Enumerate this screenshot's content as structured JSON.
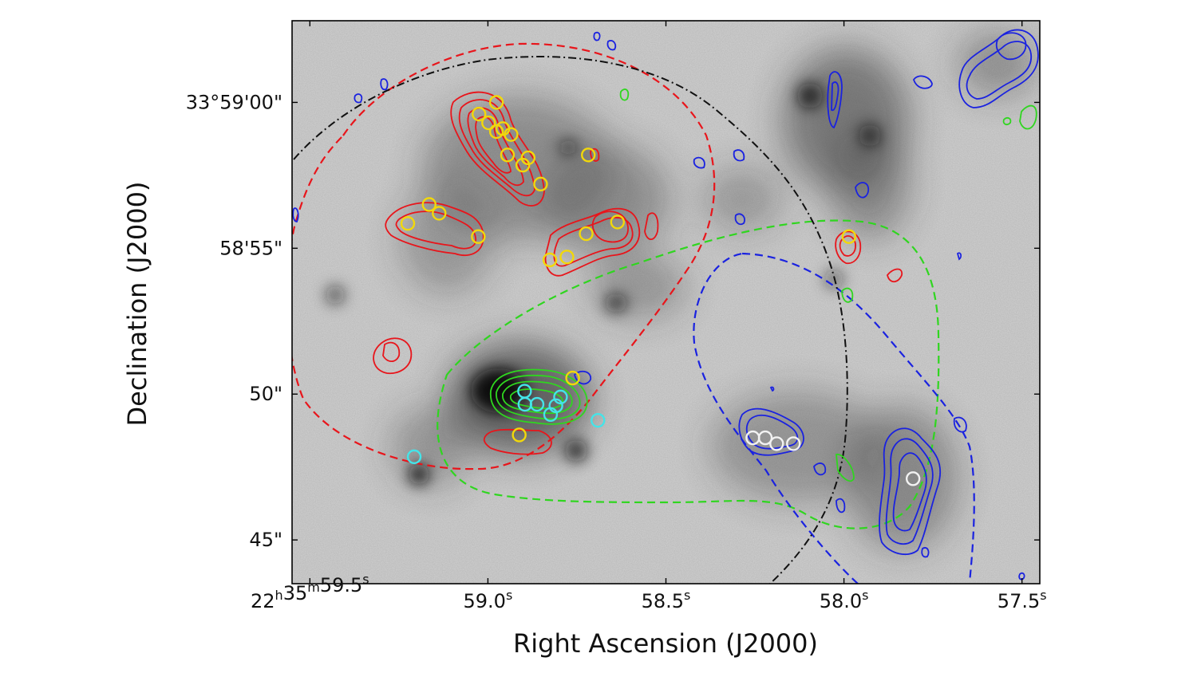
{
  "chart_data": {
    "type": "scatter",
    "title": "",
    "xlabel": "Right Ascension (J2000)",
    "ylabel": "Declination (J2000)",
    "x_axis": {
      "ra_seconds_range": [
        59.55,
        57.45
      ],
      "ticks": [
        {
          "ra_s": 59.5,
          "label": "22h35m59.5s"
        },
        {
          "ra_s": 59.0,
          "label": "59.0s"
        },
        {
          "ra_s": 58.5,
          "label": "58.5s"
        },
        {
          "ra_s": 58.0,
          "label": "58.0s"
        },
        {
          "ra_s": 57.5,
          "label": "57.5s"
        }
      ]
    },
    "y_axis": {
      "dec_arcsec_range": [
        43.5,
        62.8
      ],
      "ticks": [
        {
          "dec_s": 60,
          "label": "33°59'00\""
        },
        {
          "dec_s": 55,
          "label": "58'55\""
        },
        {
          "dec_s": 50,
          "label": "50\""
        },
        {
          "dec_s": 45,
          "label": "45\""
        }
      ]
    },
    "background": "greyscale optical image",
    "colors": {
      "red": "#e8151b",
      "green": "#2fd61f",
      "blue": "#1a22e0",
      "yellow": "#f2d80a",
      "cyan": "#44e4e8",
      "white": "#f2f2f2",
      "black": "#111111"
    },
    "series": [
      {
        "color": "yellow",
        "points": [
          [
            58.976,
            60.0
          ],
          [
            59.025,
            59.6
          ],
          [
            58.998,
            59.3
          ],
          [
            58.976,
            59.0
          ],
          [
            58.958,
            59.1
          ],
          [
            58.935,
            58.9
          ],
          [
            58.945,
            58.2
          ],
          [
            58.887,
            58.1
          ],
          [
            58.902,
            57.85
          ],
          [
            58.852,
            57.2
          ],
          [
            58.718,
            58.2
          ],
          [
            59.165,
            56.5
          ],
          [
            59.137,
            56.2
          ],
          [
            59.225,
            55.85
          ],
          [
            59.027,
            55.4
          ],
          [
            58.724,
            55.5
          ],
          [
            58.636,
            55.9
          ],
          [
            58.778,
            54.7
          ],
          [
            58.826,
            54.6
          ],
          [
            58.762,
            50.55
          ],
          [
            58.912,
            48.6
          ],
          [
            57.986,
            55.4
          ]
        ]
      },
      {
        "color": "cyan",
        "points": [
          [
            58.897,
            50.1
          ],
          [
            58.896,
            49.65
          ],
          [
            58.862,
            49.65
          ],
          [
            58.796,
            49.9
          ],
          [
            58.809,
            49.6
          ],
          [
            58.824,
            49.3
          ],
          [
            58.691,
            49.1
          ],
          [
            59.207,
            47.85
          ]
        ]
      },
      {
        "color": "white",
        "points": [
          [
            58.256,
            48.5
          ],
          [
            58.221,
            48.5
          ],
          [
            58.189,
            48.3
          ],
          [
            58.142,
            48.3
          ],
          [
            57.806,
            47.1
          ]
        ]
      }
    ],
    "regions": [
      {
        "color": "red",
        "style": "dashed"
      },
      {
        "color": "green",
        "style": "dashed"
      },
      {
        "color": "blue",
        "style": "dashed"
      },
      {
        "color": "black",
        "style": "dash-dot"
      }
    ],
    "contours": [
      {
        "color": "red"
      },
      {
        "color": "green"
      },
      {
        "color": "blue"
      }
    ]
  }
}
